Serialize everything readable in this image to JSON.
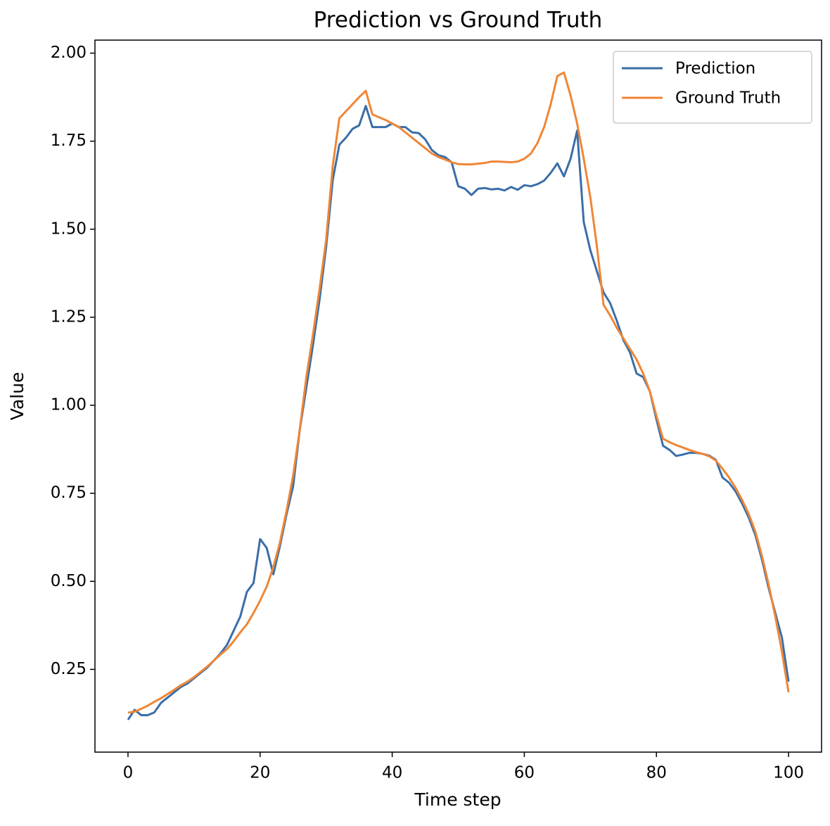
{
  "chart_data": {
    "type": "line",
    "title": "Prediction vs Ground Truth",
    "xlabel": "Time step",
    "ylabel": "Value",
    "x": [
      0,
      1,
      2,
      3,
      4,
      5,
      6,
      7,
      8,
      9,
      10,
      11,
      12,
      13,
      14,
      15,
      16,
      17,
      18,
      19,
      20,
      21,
      22,
      23,
      24,
      25,
      26,
      27,
      28,
      29,
      30,
      31,
      32,
      33,
      34,
      35,
      36,
      37,
      38,
      39,
      40,
      41,
      42,
      43,
      44,
      45,
      46,
      47,
      48,
      49,
      50,
      51,
      52,
      53,
      54,
      55,
      56,
      57,
      58,
      59,
      60,
      61,
      62,
      63,
      64,
      65,
      66,
      67,
      68,
      69,
      70,
      71,
      72,
      73,
      74,
      75,
      76,
      77,
      78,
      79,
      80,
      81,
      82,
      83,
      84,
      85,
      86,
      87,
      88,
      89,
      90,
      91,
      92,
      93,
      94,
      95,
      96,
      97,
      98,
      99,
      100
    ],
    "series": [
      {
        "name": "Prediction",
        "color": "#3a6ea8",
        "values": [
          0.107,
          0.135,
          0.12,
          0.12,
          0.128,
          0.155,
          0.17,
          0.185,
          0.2,
          0.21,
          0.225,
          0.24,
          0.255,
          0.275,
          0.295,
          0.32,
          0.36,
          0.4,
          0.47,
          0.495,
          0.62,
          0.595,
          0.52,
          0.6,
          0.69,
          0.77,
          0.93,
          1.05,
          1.17,
          1.3,
          1.45,
          1.64,
          1.74,
          1.76,
          1.785,
          1.795,
          1.85,
          1.79,
          1.79,
          1.79,
          1.8,
          1.79,
          1.79,
          1.775,
          1.773,
          1.755,
          1.725,
          1.71,
          1.705,
          1.69,
          1.622,
          1.615,
          1.597,
          1.615,
          1.617,
          1.613,
          1.615,
          1.61,
          1.62,
          1.612,
          1.625,
          1.622,
          1.628,
          1.638,
          1.66,
          1.687,
          1.65,
          1.7,
          1.78,
          1.52,
          1.44,
          1.38,
          1.32,
          1.29,
          1.24,
          1.185,
          1.15,
          1.09,
          1.08,
          1.04,
          0.96,
          0.885,
          0.873,
          0.856,
          0.86,
          0.865,
          0.865,
          0.862,
          0.857,
          0.845,
          0.795,
          0.78,
          0.755,
          0.72,
          0.68,
          0.63,
          0.56,
          0.48,
          0.41,
          0.34,
          0.215
        ]
      },
      {
        "name": "Ground Truth",
        "color": "#ef8636",
        "values": [
          0.127,
          0.13,
          0.138,
          0.147,
          0.158,
          0.168,
          0.18,
          0.192,
          0.205,
          0.215,
          0.228,
          0.243,
          0.258,
          0.275,
          0.292,
          0.308,
          0.33,
          0.355,
          0.378,
          0.41,
          0.445,
          0.485,
          0.54,
          0.61,
          0.7,
          0.8,
          0.93,
          1.08,
          1.2,
          1.33,
          1.47,
          1.68,
          1.815,
          1.835,
          1.855,
          1.875,
          1.893,
          1.826,
          1.818,
          1.81,
          1.8,
          1.79,
          1.775,
          1.76,
          1.745,
          1.73,
          1.715,
          1.705,
          1.698,
          1.69,
          1.685,
          1.684,
          1.684,
          1.686,
          1.688,
          1.692,
          1.692,
          1.691,
          1.69,
          1.692,
          1.7,
          1.715,
          1.745,
          1.79,
          1.855,
          1.935,
          1.945,
          1.88,
          1.8,
          1.7,
          1.59,
          1.45,
          1.285,
          1.255,
          1.22,
          1.19,
          1.16,
          1.13,
          1.09,
          1.04,
          0.97,
          0.905,
          0.895,
          0.887,
          0.88,
          0.873,
          0.867,
          0.862,
          0.855,
          0.843,
          0.82,
          0.795,
          0.765,
          0.73,
          0.69,
          0.64,
          0.57,
          0.49,
          0.4,
          0.3,
          0.185
        ]
      }
    ],
    "xlim": [
      -5,
      105
    ],
    "ylim": [
      0.015,
      2.037
    ],
    "xticks": [
      0,
      20,
      40,
      60,
      80,
      100
    ],
    "yticks": [
      0.25,
      {
        "value": 0.5,
        "label": "0.50"
      },
      0.75,
      {
        "value": 1.0,
        "label": "1.00"
      },
      1.25,
      {
        "value": 1.5,
        "label": "1.50"
      },
      1.75,
      {
        "value": 2.0,
        "label": "2.00"
      }
    ],
    "legend": "upper right"
  }
}
